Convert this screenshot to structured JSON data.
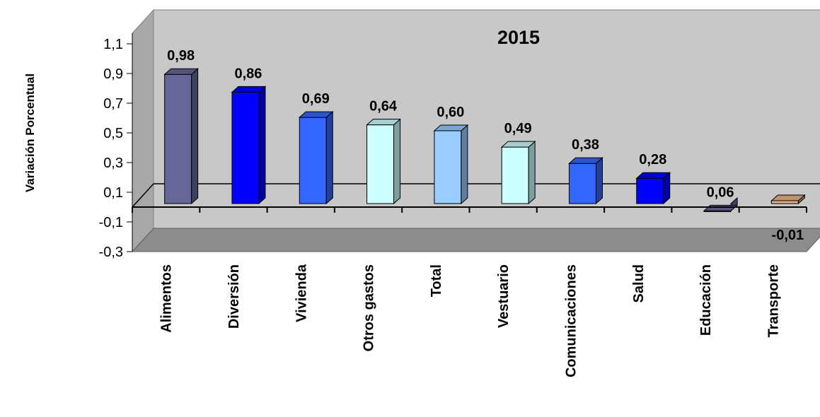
{
  "chart_data": {
    "type": "bar",
    "title": "2015",
    "ylabel": "Variación Porcentual",
    "xlabel": "",
    "categories": [
      "Alimentos",
      "Diversión",
      "Vivienda",
      "Otros gastos",
      "Total",
      "Vestuario",
      "Comunicaciones",
      "Salud",
      "Educación",
      "Transporte"
    ],
    "values": [
      0.98,
      0.86,
      0.69,
      0.64,
      0.6,
      0.49,
      0.38,
      0.28,
      0.06,
      -0.01
    ],
    "value_labels": [
      "0,98",
      "0,86",
      "0,69",
      "0,64",
      "0,60",
      "0,49",
      "0,38",
      "0,28",
      "0,06",
      "-0,01"
    ],
    "yticks": [
      1.1,
      0.9,
      0.7,
      0.5,
      0.3,
      0.1,
      -0.1,
      -0.3
    ],
    "ytick_labels": [
      "1,1",
      "0,9",
      "0,7",
      "0,5",
      "0,3",
      "0,1",
      "-0,1",
      "-0,3"
    ],
    "ylim": [
      -0.3,
      1.1
    ],
    "grid": false,
    "legend": "none",
    "colors": {
      "plot_back": "#c8c8c8",
      "plot_floor": "#8c8c8c",
      "bars": [
        "#666699",
        "#0000ff",
        "#3366ff",
        "#ccffff",
        "#99ccff",
        "#ccffff",
        "#3366ff",
        "#0000ff",
        "#666699",
        "#e8b488"
      ]
    }
  }
}
